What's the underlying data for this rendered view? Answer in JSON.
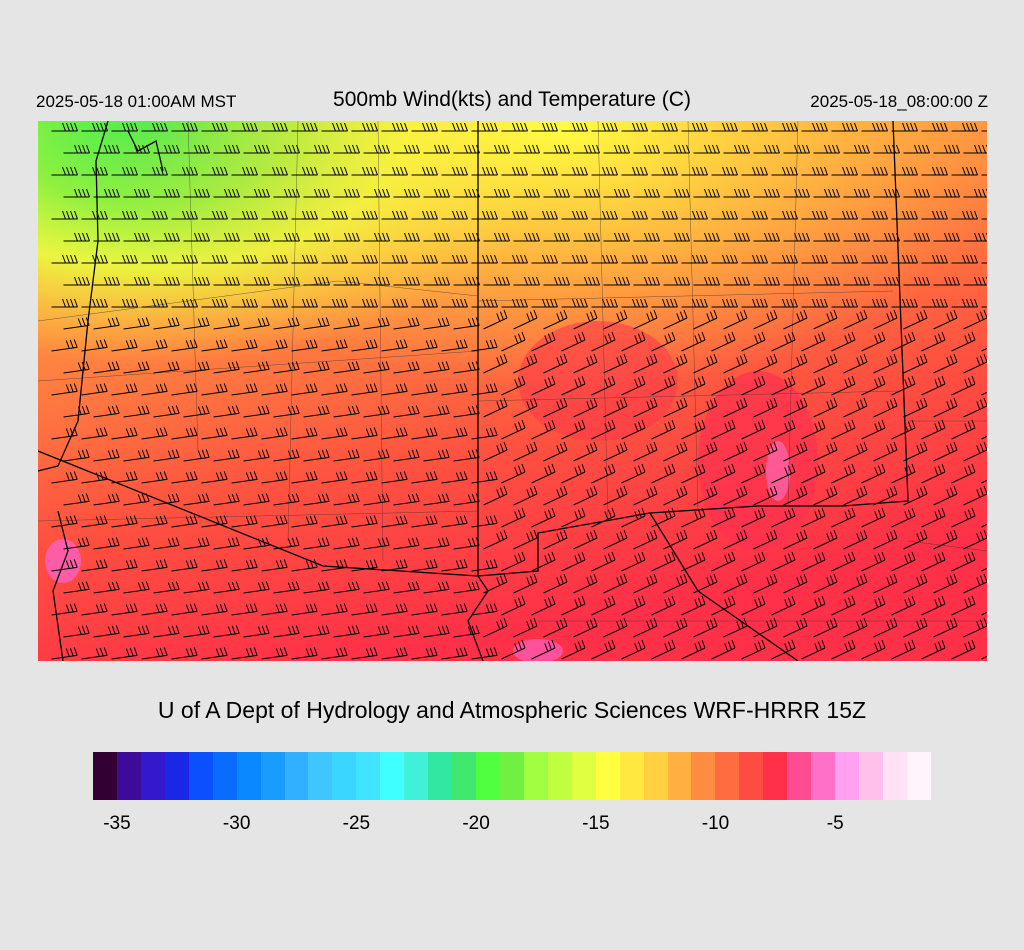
{
  "header": {
    "local_time": "2025-05-18 01:00AM MST",
    "title": "500mb Wind(kts) and Temperature (C)",
    "valid_time": "2025-05-18_08:00:00 Z"
  },
  "footer": {
    "credit": "U of A Dept of Hydrology and Atmospheric Sciences WRF-HRRR 15Z"
  },
  "legend": {
    "colors": [
      "#330033",
      "#3d0a99",
      "#3318cc",
      "#1a28e6",
      "#0a50ff",
      "#0a6cff",
      "#0a88ff",
      "#1a9cff",
      "#30b0ff",
      "#40c6ff",
      "#3ad6ff",
      "#40e4ff",
      "#40ffff",
      "#40f0d8",
      "#30e8a0",
      "#40e870",
      "#50ff40",
      "#70f040",
      "#a0ff40",
      "#c0ff40",
      "#e0ff40",
      "#ffff40",
      "#ffe840",
      "#ffd040",
      "#ffb040",
      "#ff8c40",
      "#ff6c40",
      "#ff4c40",
      "#ff3048",
      "#ff4c90",
      "#ff70c8",
      "#ffa0f0",
      "#ffc0ec",
      "#ffe0f4",
      "#fff4fc"
    ],
    "tick_values": [
      -35,
      -30,
      -25,
      -20,
      -15,
      -10,
      -5
    ],
    "ticks": [
      {
        "label": "-35",
        "index": 1
      },
      {
        "label": "-30",
        "index": 6
      },
      {
        "label": "-25",
        "index": 11
      },
      {
        "label": "-20",
        "index": 16
      },
      {
        "label": "-15",
        "index": 21
      },
      {
        "label": "-10",
        "index": 26
      },
      {
        "label": "-5",
        "index": 31
      }
    ]
  },
  "map_legend": {
    "colorbar_unit": "C",
    "wind_unit": "kts",
    "temperature_colors": {
      "coldest_shown": "#40ff40",
      "mid": "#ffb040",
      "warm": "#ff3048",
      "warmest": "#ff50c0"
    }
  }
}
